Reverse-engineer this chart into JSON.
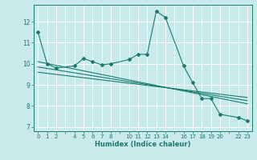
{
  "xlabel": "Humidex (Indice chaleur)",
  "ylabel": "",
  "bg_color": "#c8eaea",
  "grid_color": "#ffffff",
  "line_color": "#1a7a6e",
  "xlim": [
    -0.5,
    23.5
  ],
  "ylim": [
    6.8,
    12.8
  ],
  "xticks": [
    0,
    1,
    2,
    4,
    5,
    6,
    7,
    8,
    10,
    11,
    12,
    13,
    14,
    16,
    17,
    18,
    19,
    20,
    22,
    23
  ],
  "yticks": [
    7,
    8,
    9,
    10,
    11,
    12
  ],
  "main_x": [
    0,
    1,
    2,
    4,
    5,
    6,
    7,
    8,
    10,
    11,
    12,
    13,
    14,
    16,
    17,
    18,
    19,
    20,
    22,
    23
  ],
  "main_y": [
    11.5,
    10.0,
    9.8,
    9.9,
    10.25,
    10.1,
    9.95,
    10.0,
    10.2,
    10.45,
    10.45,
    12.5,
    12.2,
    9.9,
    9.1,
    8.35,
    8.35,
    7.6,
    7.45,
    7.3
  ],
  "trend1_x": [
    0,
    23
  ],
  "trend1_y": [
    10.1,
    8.1
  ],
  "trend2_x": [
    0,
    23
  ],
  "trend2_y": [
    9.85,
    8.25
  ],
  "trend3_x": [
    0,
    23
  ],
  "trend3_y": [
    9.6,
    8.4
  ]
}
